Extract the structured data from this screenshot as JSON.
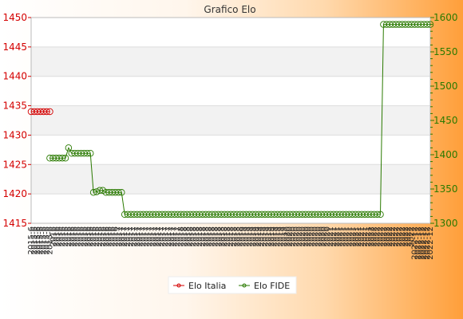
{
  "chart_data": {
    "type": "line",
    "title": "Grafico Elo",
    "y_left": {
      "ticks": [
        1415,
        1420,
        1425,
        1430,
        1435,
        1440,
        1445,
        1450
      ],
      "range": [
        1415,
        1450
      ],
      "color": "#d40000"
    },
    "y_right": {
      "ticks": [
        1300,
        1350,
        1400,
        1450,
        1500,
        1550,
        1600
      ],
      "range": [
        1300,
        1600
      ],
      "color": "#2a7a00"
    },
    "x_count": 129,
    "x_tick_labels": [
      "2015-6",
      "2016",
      "2016",
      "2016",
      "2017",
      "2017",
      "2017",
      "2018",
      "2018",
      "2018",
      "2019",
      "2019",
      "2020",
      "2020",
      "2021",
      "2021",
      "2022",
      "2022",
      "2022-12"
    ],
    "grid": true,
    "legend_position": "bottom",
    "series": [
      {
        "name": "Elo Italia",
        "axis": "left",
        "color": "#d40000",
        "x": [
          0,
          1,
          2,
          3,
          4,
          5,
          6
        ],
        "values": [
          1434,
          1434,
          1434,
          1434,
          1434,
          1434,
          1434
        ]
      },
      {
        "name": "Elo FIDE",
        "axis": "right",
        "color": "#2a7a00",
        "segments": [
          {
            "from": 6,
            "to": 12,
            "value": 1395
          },
          {
            "from": 12,
            "to": 13,
            "value": 1410
          },
          {
            "from": 13,
            "to": 20,
            "value": 1402
          },
          {
            "from": 20,
            "to": 21,
            "value": 1345
          },
          {
            "from": 21,
            "to": 22,
            "value": 1346
          },
          {
            "from": 22,
            "to": 24,
            "value": 1348
          },
          {
            "from": 24,
            "to": 30,
            "value": 1345
          },
          {
            "from": 30,
            "to": 113,
            "value": 1313
          },
          {
            "from": 113,
            "to": 128,
            "value": 1590
          }
        ]
      }
    ]
  }
}
